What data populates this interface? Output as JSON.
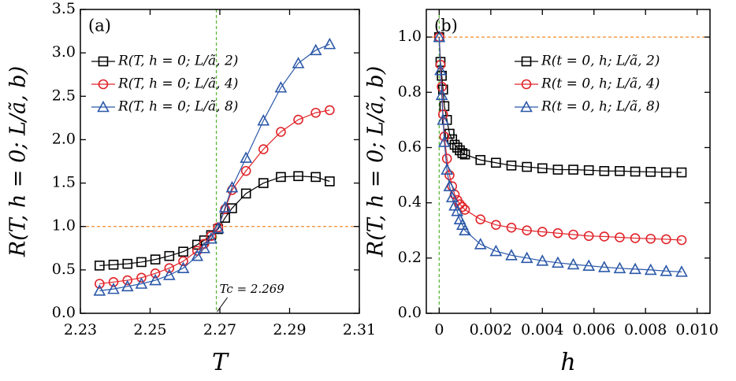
{
  "chart_data": [
    {
      "type": "line",
      "panel_label": "(a)",
      "x_label": "T",
      "y_label": "R(T, h = 0; L/ã, b)",
      "xlim": [
        2.23,
        2.31
      ],
      "ylim": [
        0,
        3.5
      ],
      "xticks": [
        2.23,
        2.25,
        2.27,
        2.29,
        2.31
      ],
      "yticks": [
        {
          "value": 0,
          "label": "0.0"
        },
        0.5,
        {
          "value": 1,
          "label": "1.0"
        },
        1.5,
        {
          "value": 2,
          "label": "2.0"
        },
        2.5,
        {
          "value": 3,
          "label": "3.0"
        },
        3.5
      ],
      "hline": 1,
      "vline": 2.269,
      "annotation": "Tc = 2.269",
      "legend": "upper left",
      "x": [
        2.2355,
        2.2395,
        2.2435,
        2.2475,
        2.2515,
        2.2555,
        2.2595,
        2.2635,
        2.2655,
        2.2675,
        2.2695,
        2.2715,
        2.2735,
        2.2775,
        2.2825,
        2.2875,
        2.2925,
        2.2975,
        2.3015
      ],
      "series": [
        {
          "name": "R(T, h = 0; L/ã, 2)",
          "color": "#000000",
          "marker": "square",
          "values": [
            0.55,
            0.56,
            0.57,
            0.59,
            0.62,
            0.66,
            0.71,
            0.79,
            0.84,
            0.9,
            0.97,
            1.1,
            1.21,
            1.38,
            1.5,
            1.57,
            1.58,
            1.57,
            1.52
          ]
        },
        {
          "name": "R(T, h = 0; L/ã, 4)",
          "color": "#e0242a",
          "marker": "circle",
          "values": [
            0.34,
            0.36,
            0.38,
            0.41,
            0.46,
            0.52,
            0.6,
            0.72,
            0.8,
            0.89,
            0.99,
            1.2,
            1.42,
            1.64,
            1.89,
            2.09,
            2.23,
            2.31,
            2.34
          ]
        },
        {
          "name": "R(T, h = 0; L/ã, 8)",
          "color": "#2b58a8",
          "marker": "triangle",
          "values": [
            0.26,
            0.28,
            0.31,
            0.34,
            0.38,
            0.44,
            0.52,
            0.66,
            0.75,
            0.86,
            0.98,
            1.22,
            1.45,
            1.79,
            2.22,
            2.6,
            2.88,
            3.03,
            3.1
          ]
        }
      ]
    },
    {
      "type": "line",
      "panel_label": "(b)",
      "x_label": "h",
      "y_label": "R(T, h = 0; L/ã, b)",
      "xlim": [
        -0.0005,
        0.0105
      ],
      "ylim": [
        0,
        1.1
      ],
      "xticks": [
        0,
        0.002,
        0.004,
        0.006,
        0.008,
        {
          "value": 0.01,
          "label": "0.010"
        }
      ],
      "yticks": [
        {
          "value": 0,
          "label": "0.0"
        },
        0.2,
        0.4,
        0.6,
        0.8,
        {
          "value": 1,
          "label": "1.0"
        }
      ],
      "hline": 1,
      "vline": 0,
      "legend": "upper right",
      "x": [
        0,
        5e-05,
        0.0001,
        0.00015,
        0.0002,
        0.0003,
        0.0004,
        0.0005,
        0.0006,
        0.0007,
        0.0008,
        0.0009,
        0.001,
        0.0016,
        0.0022,
        0.0028,
        0.0034,
        0.004,
        0.0046,
        0.0052,
        0.0058,
        0.0064,
        0.007,
        0.0076,
        0.0082,
        0.0088,
        0.0094
      ],
      "series": [
        {
          "name": "R(t = 0, h; L/ã, 2)",
          "color": "#000000",
          "marker": "square",
          "values": [
            1.0,
            0.91,
            0.86,
            0.81,
            0.75,
            0.7,
            0.65,
            0.63,
            0.61,
            0.6,
            0.59,
            0.58,
            0.575,
            0.555,
            0.545,
            0.535,
            0.53,
            0.525,
            0.52,
            0.52,
            0.518,
            0.515,
            0.515,
            0.513,
            0.512,
            0.51,
            0.51
          ]
        },
        {
          "name": "R(t = 0, h; L/ã, 4)",
          "color": "#e0242a",
          "marker": "circle",
          "values": [
            1.0,
            0.9,
            0.82,
            0.72,
            0.64,
            0.56,
            0.5,
            0.46,
            0.43,
            0.41,
            0.395,
            0.385,
            0.375,
            0.34,
            0.32,
            0.31,
            0.3,
            0.295,
            0.29,
            0.285,
            0.28,
            0.278,
            0.275,
            0.272,
            0.27,
            0.268,
            0.265
          ]
        },
        {
          "name": "R(t = 0, h; L/ã, 8)",
          "color": "#2b58a8",
          "marker": "triangle",
          "values": [
            1.0,
            0.88,
            0.79,
            0.7,
            0.62,
            0.52,
            0.46,
            0.42,
            0.39,
            0.37,
            0.34,
            0.32,
            0.3,
            0.25,
            0.225,
            0.21,
            0.2,
            0.19,
            0.183,
            0.177,
            0.172,
            0.167,
            0.163,
            0.16,
            0.157,
            0.153,
            0.15
          ]
        }
      ]
    }
  ]
}
